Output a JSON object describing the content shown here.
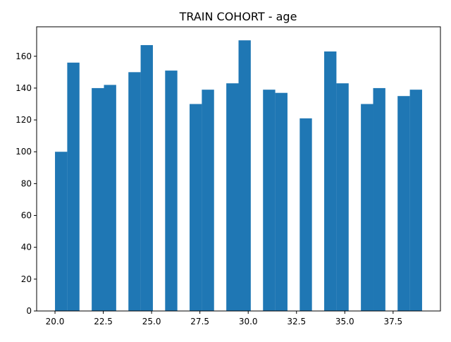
{
  "chart_data": {
    "type": "bar",
    "title": "TRAIN COHORT - age",
    "xlabel": "",
    "ylabel": "",
    "bar_color": "#1f77b4",
    "bin_edges": [
      20.0,
      20.633,
      21.267,
      21.9,
      22.533,
      23.167,
      23.8,
      24.433,
      25.067,
      25.7,
      26.333,
      26.967,
      27.6,
      28.233,
      28.867,
      29.5,
      30.133,
      30.767,
      31.4,
      32.033,
      32.667,
      33.3,
      33.933,
      34.567,
      35.2,
      35.833,
      36.467,
      37.1,
      37.733,
      38.367,
      39.0
    ],
    "counts": [
      100,
      156,
      0,
      140,
      142,
      0,
      150,
      167,
      0,
      151,
      0,
      130,
      139,
      0,
      143,
      170,
      0,
      139,
      137,
      0,
      121,
      0,
      163,
      143,
      0,
      130,
      140,
      0,
      135,
      139
    ],
    "xlim": [
      19.05,
      39.95
    ],
    "ylim": [
      0,
      178.5
    ],
    "x_ticks": [
      20.0,
      22.5,
      25.0,
      27.5,
      30.0,
      32.5,
      35.0,
      37.5
    ],
    "x_tick_labels": [
      "20.0",
      "22.5",
      "25.0",
      "27.5",
      "30.0",
      "32.5",
      "35.0",
      "37.5"
    ],
    "y_ticks": [
      0,
      20,
      40,
      60,
      80,
      100,
      120,
      140,
      160
    ],
    "y_tick_labels": [
      "0",
      "20",
      "40",
      "60",
      "80",
      "100",
      "120",
      "140",
      "160"
    ],
    "grid": false,
    "legend": "none"
  }
}
